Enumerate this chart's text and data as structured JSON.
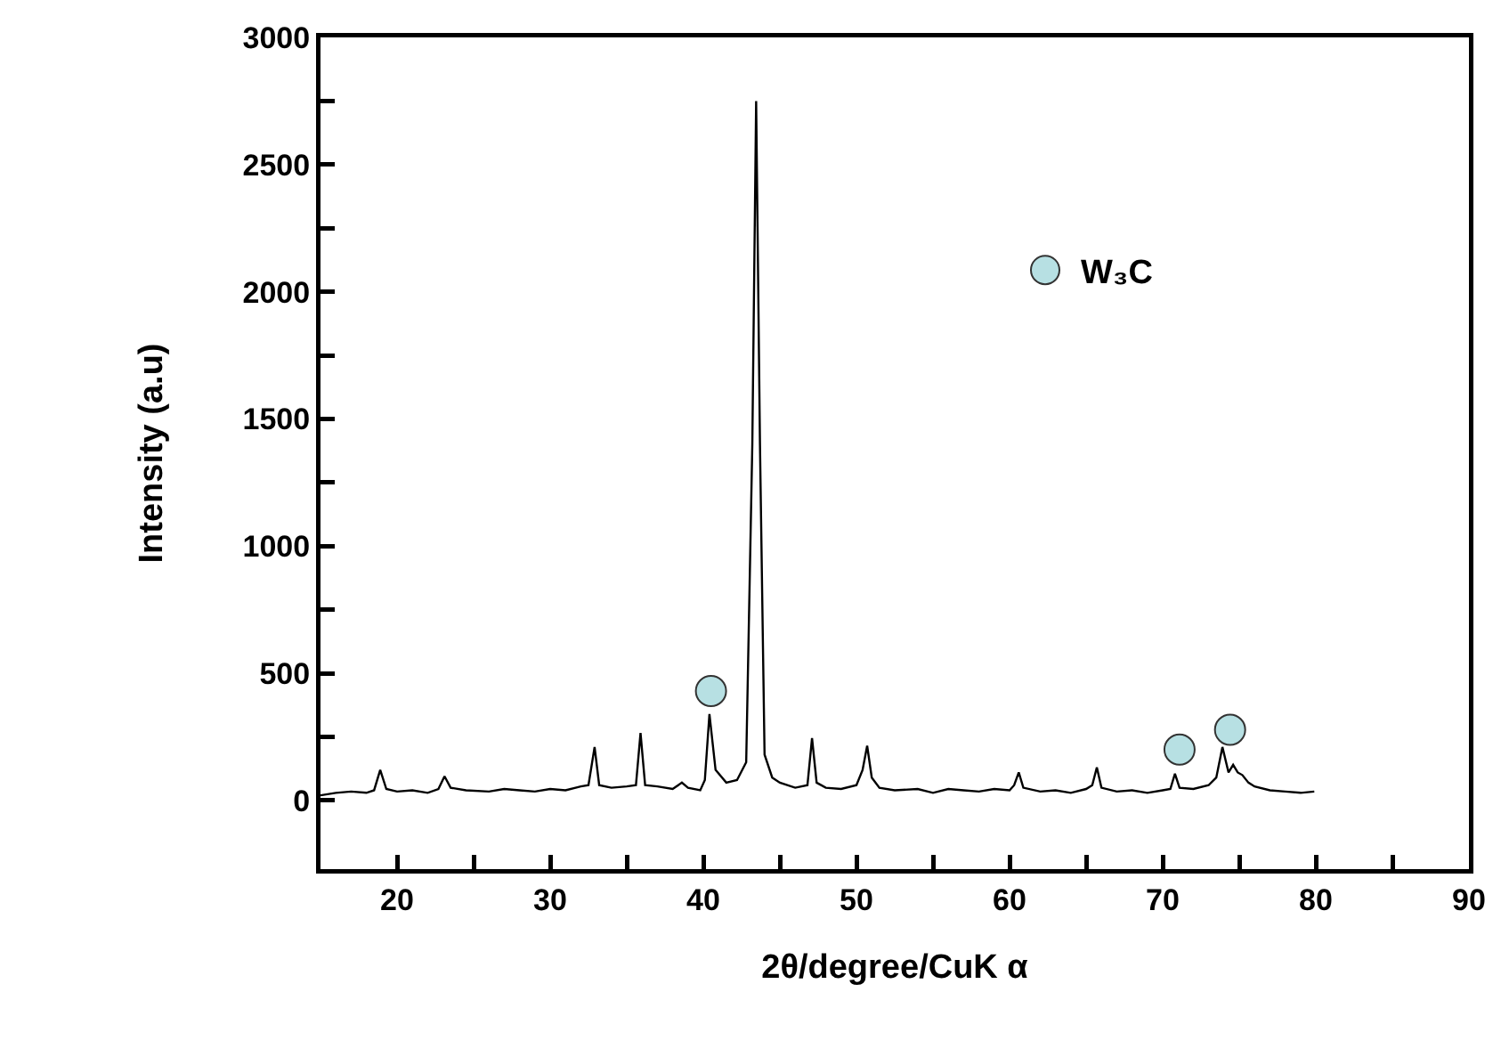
{
  "chart_data": {
    "type": "line",
    "xlabel": "2θ/degree/CuK α",
    "ylabel": "Intensity (a.u)",
    "xlim": [
      15,
      90
    ],
    "ylim": [
      -270,
      3000
    ],
    "xticks": [
      20,
      {
        "value": 25,
        "label": null
      },
      30,
      {
        "value": 35,
        "label": null
      },
      40,
      {
        "value": 45,
        "label": null
      },
      50,
      {
        "value": 55,
        "label": null
      },
      60,
      {
        "value": 65,
        "label": null
      },
      70,
      {
        "value": 75,
        "label": null
      },
      80,
      {
        "value": 85,
        "label": null
      },
      90
    ],
    "yticks": [
      0,
      {
        "value": 250,
        "label": null
      },
      500,
      {
        "value": 750,
        "label": null
      },
      1000,
      {
        "value": 1250,
        "label": null
      },
      1500,
      {
        "value": 1750,
        "label": null
      },
      2000,
      {
        "value": 2250,
        "label": null
      },
      2500,
      {
        "value": 2750,
        "label": null
      },
      3000
    ],
    "grid": false,
    "legend": "top right",
    "marker": "none",
    "line_style": "solid",
    "series": [
      {
        "color": "#000000",
        "x": [
          15,
          16,
          17,
          18,
          18.5,
          18.9,
          19.3,
          20,
          21,
          22,
          22.7,
          23.1,
          23.5,
          24.5,
          26,
          27,
          28,
          29,
          30,
          31,
          32,
          32.5,
          32.9,
          33.2,
          34,
          35,
          35.6,
          35.9,
          36.2,
          37,
          38,
          38.6,
          39,
          39.8,
          40.1,
          40.4,
          40.8,
          41.5,
          42.2,
          42.8,
          43.2,
          43.45,
          43.7,
          44,
          44.5,
          45,
          46,
          46.8,
          47.1,
          47.4,
          48,
          49,
          50,
          50.4,
          50.7,
          51,
          51.5,
          52.5,
          54,
          55,
          56,
          57,
          58,
          59,
          60,
          60.3,
          60.6,
          60.9,
          62,
          63,
          64,
          65,
          65.4,
          65.7,
          66,
          67,
          68,
          69,
          70,
          70.5,
          70.8,
          71.1,
          72,
          73,
          73.5,
          73.9,
          74.3,
          74.6,
          74.9,
          75.2,
          75.6,
          76,
          77,
          78,
          79,
          79.9
        ],
        "values": [
          20,
          30,
          35,
          30,
          40,
          120,
          45,
          35,
          40,
          30,
          45,
          95,
          50,
          40,
          35,
          45,
          40,
          35,
          45,
          40,
          55,
          60,
          210,
          60,
          50,
          55,
          60,
          265,
          60,
          55,
          45,
          70,
          50,
          40,
          80,
          340,
          120,
          70,
          80,
          150,
          1400,
          2750,
          1400,
          180,
          90,
          70,
          50,
          60,
          245,
          70,
          50,
          45,
          60,
          120,
          215,
          90,
          50,
          40,
          45,
          30,
          45,
          40,
          35,
          45,
          40,
          60,
          110,
          50,
          35,
          40,
          30,
          45,
          60,
          130,
          50,
          35,
          40,
          30,
          40,
          45,
          105,
          50,
          45,
          60,
          90,
          210,
          110,
          140,
          110,
          100,
          70,
          55,
          40,
          35,
          30,
          35
        ]
      },
      {
        "type": "scatter",
        "name": "W₃C",
        "color": "#b7e0e3",
        "marker": "circle",
        "x": [
          40.5,
          71.1,
          74.4
        ],
        "values": [
          430,
          200,
          278
        ]
      }
    ]
  }
}
